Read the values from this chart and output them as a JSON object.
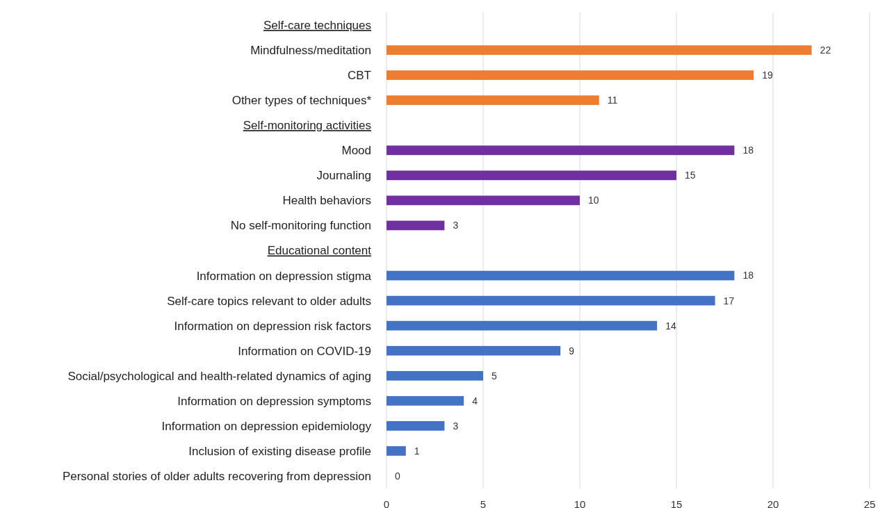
{
  "chart_data": {
    "type": "bar",
    "orientation": "horizontal",
    "categories": [
      "Self-care techniques",
      "Mindfulness/meditation",
      "CBT",
      "Other types of techniques*",
      "Self-monitoring activities",
      "Mood",
      "Journaling",
      "Health behaviors",
      "No self-monitoring function",
      "Educational content",
      "Information on depression stigma",
      "Self-care topics relevant to older adults",
      "Information on depression risk factors",
      "Information on COVID-19",
      "Social/psychological and health-related dynamics of aging",
      "Information on depression symptoms",
      "Information on depression epidemiology",
      "Inclusion of existing disease profile",
      "Personal stories of older adults recovering from depression"
    ],
    "values": [
      null,
      22,
      19,
      11,
      null,
      18,
      15,
      10,
      3,
      null,
      18,
      17,
      14,
      9,
      5,
      4,
      3,
      1,
      0
    ],
    "colors": [
      null,
      "#ed7d31",
      "#ed7d31",
      "#ed7d31",
      null,
      "#7030a0",
      "#7030a0",
      "#7030a0",
      "#7030a0",
      null,
      "#4472c4",
      "#4472c4",
      "#4472c4",
      "#4472c4",
      "#4472c4",
      "#4472c4",
      "#4472c4",
      "#4472c4",
      "#4472c4"
    ],
    "xlim": [
      0,
      25
    ],
    "xticks": [
      0,
      5,
      10,
      15,
      20,
      25
    ],
    "grid": "x",
    "data_labels": true
  }
}
